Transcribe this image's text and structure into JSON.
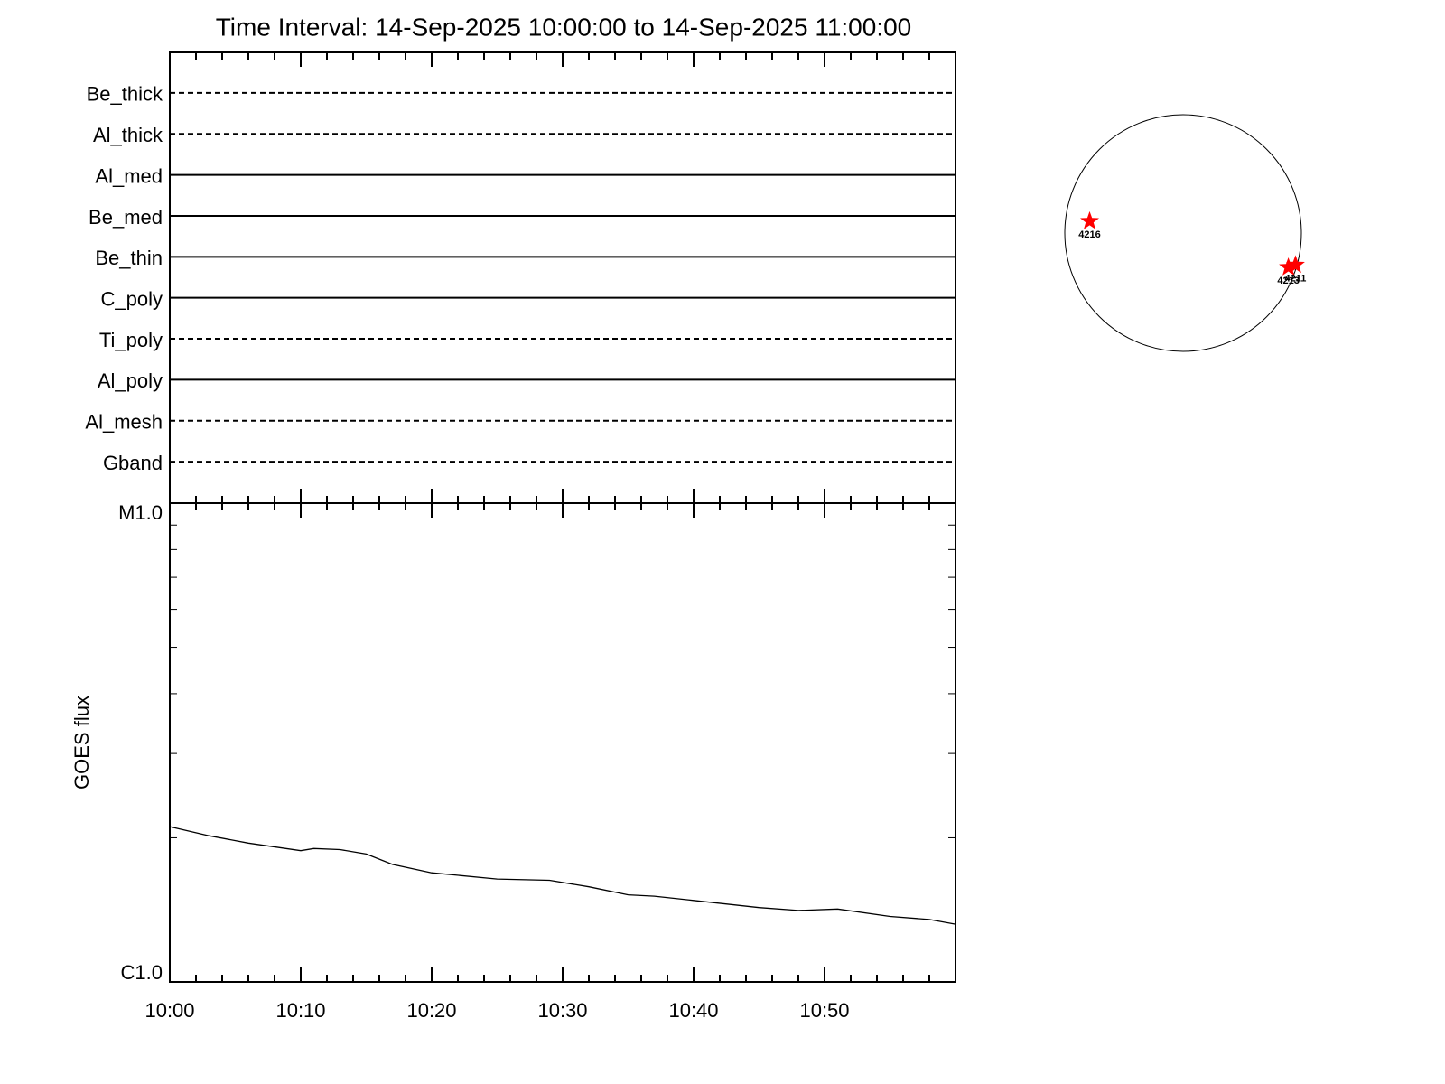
{
  "chart_data": [
    {
      "type": "filters",
      "title": "Time Interval: 14-Sep-2025 10:00:00 to 14-Sep-2025 11:00:00",
      "categories": [
        "Be_thick",
        "Al_thick",
        "Al_med",
        "Be_med",
        "Be_thin",
        "C_poly",
        "Ti_poly",
        "Al_poly",
        "Al_mesh",
        "Gband"
      ],
      "styles": [
        "dashed",
        "dashed",
        "solid",
        "solid",
        "solid",
        "solid",
        "dashed",
        "solid",
        "dashed",
        "dashed"
      ],
      "xlim": [
        "10:00",
        "11:00"
      ],
      "xticks": [
        "10:00",
        "10:10",
        "10:20",
        "10:30",
        "10:40",
        "10:50"
      ]
    },
    {
      "type": "line",
      "ylabel": "GOES flux",
      "log": true,
      "color": "#000000",
      "x": [
        "10:00",
        "10:03",
        "10:06",
        "10:10",
        "10:11",
        "10:13",
        "10:15",
        "10:17",
        "10:20",
        "10:25",
        "10:29",
        "10:32",
        "10:35",
        "10:37",
        "10:40",
        "10:45",
        "10:48",
        "10:51",
        "10:55",
        "10:58",
        "11:00"
      ],
      "values": [
        2.11e-06,
        2.02e-06,
        1.95e-06,
        1.88e-06,
        1.9e-06,
        1.89e-06,
        1.85e-06,
        1.76e-06,
        1.69e-06,
        1.64e-06,
        1.63e-06,
        1.58e-06,
        1.52e-06,
        1.51e-06,
        1.48e-06,
        1.43e-06,
        1.41e-06,
        1.42e-06,
        1.37e-06,
        1.35e-06,
        1.32e-06
      ],
      "xlim": [
        "10:00",
        "11:00"
      ],
      "xticks": [
        "10:00",
        "10:10",
        "10:20",
        "10:30",
        "10:40",
        "10:50"
      ],
      "ylim": [
        1e-06,
        1e-05
      ],
      "yticks": [
        {
          "value": 1e-06,
          "label": "C1.0"
        },
        {
          "value": 1e-05,
          "label": "M1.0"
        }
      ],
      "yminor": [
        2e-06,
        3e-06,
        4e-06,
        5e-06,
        6e-06,
        7e-06,
        8e-06,
        9e-06
      ]
    },
    {
      "type": "disk",
      "color": "#ff0000",
      "xlim": [
        -1,
        1
      ],
      "ylim": [
        -1,
        1
      ],
      "labels": [
        "4216",
        "4213",
        "4211"
      ],
      "x": [
        -0.79,
        0.89,
        0.95
      ],
      "values": [
        0.1,
        -0.29,
        -0.27
      ]
    }
  ]
}
